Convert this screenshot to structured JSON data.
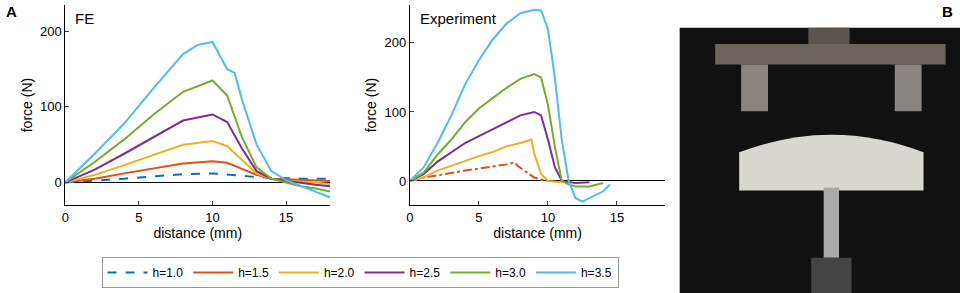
{
  "panel_labels": [
    "A",
    "B"
  ],
  "chart_data": [
    {
      "type": "line",
      "title": "FE",
      "x_label": "distance (mm)",
      "y_label": "force (N)",
      "xlim": [
        0,
        18
      ],
      "xticks": [
        0,
        5,
        10,
        15
      ],
      "ylim": [
        -30,
        235
      ],
      "yticks": [
        0,
        100,
        200
      ],
      "grid": false,
      "legend": "bottom",
      "series": [
        {
          "name": "h=1.0",
          "color": "#0072BD",
          "line_style": "dash",
          "x": [
            0,
            2,
            4,
            6,
            8,
            10,
            11,
            12,
            13,
            14,
            15,
            16,
            17,
            18
          ],
          "values": [
            0,
            2,
            5,
            8,
            11,
            12,
            11,
            9,
            7,
            6,
            5,
            5,
            5,
            5
          ]
        },
        {
          "name": "h=1.5",
          "color": "#D95319",
          "line_style": "solid",
          "x": [
            0,
            2,
            4,
            6,
            8,
            10,
            11,
            12,
            13,
            14,
            15,
            16,
            17,
            18
          ],
          "values": [
            0,
            5,
            12,
            19,
            25,
            28,
            26,
            18,
            10,
            5,
            4,
            3,
            3,
            2
          ]
        },
        {
          "name": "h=2.0",
          "color": "#EDB120",
          "line_style": "solid",
          "x": [
            0,
            2,
            4,
            6,
            8,
            10,
            11,
            12,
            13,
            14,
            15,
            16,
            17,
            18
          ],
          "values": [
            0,
            10,
            23,
            37,
            50,
            55,
            48,
            30,
            12,
            5,
            2,
            1,
            0,
            -2
          ]
        },
        {
          "name": "h=2.5",
          "color": "#7E2F8E",
          "line_style": "solid",
          "x": [
            0,
            2,
            4,
            6,
            8,
            10,
            11,
            12,
            13,
            14,
            15,
            16,
            17,
            18
          ],
          "values": [
            0,
            17,
            38,
            60,
            82,
            90,
            80,
            45,
            15,
            5,
            2,
            0,
            -3,
            -5
          ]
        },
        {
          "name": "h=3.0",
          "color": "#77AC30",
          "line_style": "solid",
          "x": [
            0,
            2,
            4,
            6,
            8,
            10,
            11,
            12,
            13,
            14,
            15,
            16,
            17,
            18
          ],
          "values": [
            0,
            27,
            57,
            90,
            120,
            135,
            115,
            60,
            20,
            5,
            0,
            -5,
            -8,
            -12
          ]
        },
        {
          "name": "h=3.5",
          "color": "#4DBEEE",
          "line_style": "solid",
          "x": [
            0,
            2,
            4,
            6,
            8,
            9,
            10,
            11,
            11.5,
            12,
            13,
            14,
            15,
            16,
            17,
            18
          ],
          "values": [
            0,
            38,
            78,
            125,
            170,
            182,
            186,
            150,
            145,
            110,
            50,
            15,
            3,
            -5,
            -12,
            -20
          ]
        }
      ]
    },
    {
      "type": "line",
      "title": "Experiment",
      "x_label": "distance (mm)",
      "y_label": "force (N)",
      "xlim": [
        0,
        18.5
      ],
      "xticks": [
        0,
        5,
        10,
        15
      ],
      "ylim": [
        -35,
        255
      ],
      "yticks": [
        0,
        100,
        200
      ],
      "grid": false,
      "series": [
        {
          "name": "h=1.5",
          "color": "#D95319",
          "line_style": "dashdot",
          "x": [
            0,
            1,
            2,
            3,
            4,
            5,
            6,
            7,
            7.6,
            7.8,
            8.5,
            9,
            9.5,
            10
          ],
          "values": [
            0,
            5,
            8,
            12,
            15,
            18,
            21,
            24,
            27,
            22,
            12,
            5,
            2,
            0
          ]
        },
        {
          "name": "h=2.0",
          "color": "#EDB120",
          "line_style": "solid",
          "x": [
            0,
            1,
            2,
            3,
            4,
            5,
            6,
            7,
            8,
            8.8,
            9,
            9.5,
            10,
            11
          ],
          "values": [
            0,
            5,
            15,
            22,
            30,
            36,
            42,
            50,
            55,
            60,
            40,
            10,
            0,
            -2
          ]
        },
        {
          "name": "h=2.5",
          "color": "#7E2F8E",
          "line_style": "solid",
          "x": [
            0,
            1,
            2,
            3,
            4,
            5,
            6,
            7,
            8,
            9,
            9.5,
            10,
            10.5,
            11,
            11.5,
            12,
            13
          ],
          "values": [
            0,
            10,
            28,
            42,
            55,
            65,
            75,
            85,
            95,
            100,
            95,
            60,
            20,
            0,
            -2,
            -3,
            -2
          ]
        },
        {
          "name": "h=3.0",
          "color": "#77AC30",
          "line_style": "solid",
          "x": [
            0,
            1,
            2,
            3,
            4,
            5,
            6,
            7,
            8,
            9,
            9.5,
            10,
            10.5,
            11,
            11.5,
            12,
            13,
            13.5,
            14
          ],
          "values": [
            0,
            12,
            38,
            60,
            85,
            105,
            120,
            135,
            148,
            155,
            150,
            110,
            50,
            0,
            -5,
            -8,
            -8,
            -5,
            -3
          ]
        },
        {
          "name": "h=3.5",
          "color": "#4DBEEE",
          "line_style": "solid",
          "x": [
            0,
            1,
            2,
            3,
            4,
            5,
            6,
            7,
            8,
            9,
            9.5,
            10,
            10.5,
            11,
            11.5,
            12,
            12.5,
            13,
            14,
            14.5
          ],
          "values": [
            0,
            20,
            55,
            95,
            140,
            175,
            205,
            228,
            243,
            248,
            247,
            220,
            150,
            60,
            0,
            -25,
            -30,
            -25,
            -15,
            -5
          ]
        }
      ]
    }
  ]
}
